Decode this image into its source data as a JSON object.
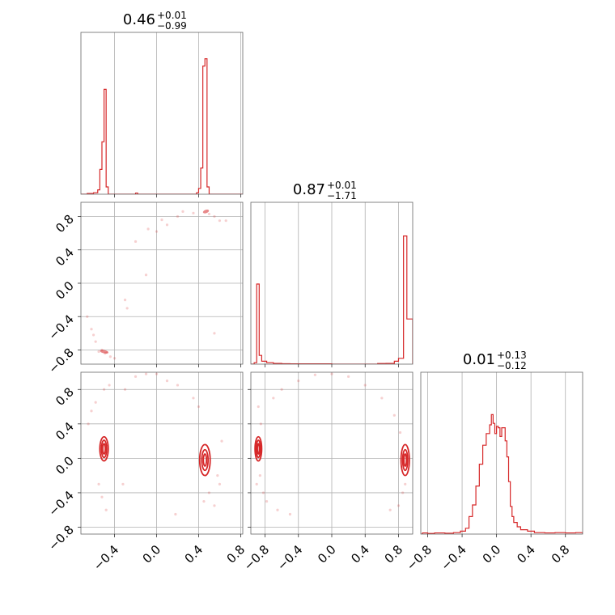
{
  "chart_data": {
    "type": "corner",
    "colors": {
      "series": "#d62728",
      "grid": "#b0b0b0",
      "frame": "#666666"
    },
    "grid": true,
    "params": [
      {
        "id": "p0",
        "range": [
          -0.72,
          0.82
        ],
        "ticks": [
          -0.4,
          0.0,
          0.4,
          0.8
        ],
        "tick_labels": [
          "−0.4",
          "0.0",
          "0.4",
          "0.8"
        ],
        "title": {
          "value": "0.46",
          "plus": "+0.01",
          "minus": "−0.99"
        }
      },
      {
        "id": "p1",
        "range": [
          -0.97,
          0.97
        ],
        "ticks": [
          -0.8,
          -0.4,
          0.0,
          0.4,
          0.8
        ],
        "tick_labels": [
          "−0.8",
          "−0.4",
          "0.0",
          "0.4",
          "0.8"
        ],
        "title": {
          "value": "0.87",
          "plus": "+0.01",
          "minus": "−1.71"
        }
      },
      {
        "id": "p2",
        "range": [
          -0.88,
          1.0
        ],
        "ticks": [
          -0.8,
          -0.4,
          0.0,
          0.4,
          0.8
        ],
        "tick_labels": [
          "−0.8",
          "−0.4",
          "0.0",
          "0.4",
          "0.8"
        ],
        "title": {
          "value": "0.01",
          "plus": "+0.13",
          "minus": "−0.12"
        }
      }
    ],
    "histograms": [
      {
        "param": "p0",
        "ymax": 1.0,
        "bins": [
          [
            -0.72,
            0.0
          ],
          [
            -0.66,
            0.005
          ],
          [
            -0.6,
            0.01
          ],
          [
            -0.56,
            0.03
          ],
          [
            -0.54,
            0.17
          ],
          [
            -0.52,
            0.36
          ],
          [
            -0.5,
            0.72
          ],
          [
            -0.48,
            0.05
          ],
          [
            -0.46,
            0.0
          ],
          [
            -0.22,
            0.0
          ],
          [
            -0.2,
            0.008
          ],
          [
            -0.18,
            0.0
          ],
          [
            0.36,
            0.0
          ],
          [
            0.38,
            0.01
          ],
          [
            0.4,
            0.04
          ],
          [
            0.42,
            0.18
          ],
          [
            0.44,
            0.88
          ],
          [
            0.46,
            0.93
          ],
          [
            0.48,
            0.05
          ],
          [
            0.5,
            0.0
          ],
          [
            0.82,
            0.0
          ]
        ]
      },
      {
        "param": "p1",
        "ymax": 1.0,
        "bins": [
          [
            -0.97,
            0.0
          ],
          [
            -0.93,
            0.01
          ],
          [
            -0.9,
            0.55
          ],
          [
            -0.87,
            0.06
          ],
          [
            -0.84,
            0.02
          ],
          [
            -0.78,
            0.01
          ],
          [
            -0.7,
            0.005
          ],
          [
            -0.6,
            0.003
          ],
          [
            -0.5,
            0.002
          ],
          [
            0.0,
            0.0
          ],
          [
            0.55,
            0.004
          ],
          [
            0.65,
            0.005
          ],
          [
            0.75,
            0.02
          ],
          [
            0.8,
            0.04
          ],
          [
            0.86,
            0.88
          ],
          [
            0.9,
            0.31
          ],
          [
            0.97,
            0.0
          ]
        ]
      },
      {
        "param": "p2",
        "ymax": 1.0,
        "bins": [
          [
            -0.88,
            0.0
          ],
          [
            -0.86,
            0.008
          ],
          [
            -0.8,
            0.004
          ],
          [
            -0.72,
            0.008
          ],
          [
            -0.6,
            0.006
          ],
          [
            -0.5,
            0.01
          ],
          [
            -0.42,
            0.02
          ],
          [
            -0.36,
            0.04
          ],
          [
            -0.32,
            0.12
          ],
          [
            -0.28,
            0.2
          ],
          [
            -0.24,
            0.33
          ],
          [
            -0.2,
            0.48
          ],
          [
            -0.16,
            0.61
          ],
          [
            -0.12,
            0.69
          ],
          [
            -0.08,
            0.75
          ],
          [
            -0.06,
            0.82
          ],
          [
            -0.04,
            0.76
          ],
          [
            -0.02,
            0.69
          ],
          [
            0.0,
            0.74
          ],
          [
            0.02,
            0.73
          ],
          [
            0.04,
            0.67
          ],
          [
            0.06,
            0.73
          ],
          [
            0.08,
            0.73
          ],
          [
            0.1,
            0.64
          ],
          [
            0.12,
            0.53
          ],
          [
            0.14,
            0.36
          ],
          [
            0.16,
            0.19
          ],
          [
            0.18,
            0.12
          ],
          [
            0.2,
            0.08
          ],
          [
            0.24,
            0.05
          ],
          [
            0.28,
            0.03
          ],
          [
            0.32,
            0.03
          ],
          [
            0.36,
            0.02
          ],
          [
            0.44,
            0.01
          ],
          [
            0.56,
            0.008
          ],
          [
            0.68,
            0.01
          ],
          [
            0.8,
            0.008
          ],
          [
            0.92,
            0.01
          ],
          [
            1.0,
            0.0
          ]
        ]
      }
    ],
    "pairs": [
      {
        "x": "p0",
        "y": "p1",
        "scatter": [
          [
            -0.55,
            -0.82
          ],
          [
            -0.52,
            -0.8
          ],
          [
            -0.49,
            -0.84
          ],
          [
            -0.47,
            -0.83
          ],
          [
            -0.58,
            -0.7
          ],
          [
            -0.62,
            -0.55
          ],
          [
            -0.66,
            -0.4
          ],
          [
            -0.6,
            -0.62
          ],
          [
            -0.44,
            -0.88
          ],
          [
            -0.4,
            -0.9
          ],
          [
            -0.3,
            -0.2
          ],
          [
            -0.28,
            -0.3
          ],
          [
            -0.2,
            0.5
          ],
          [
            -0.1,
            0.1
          ],
          [
            0.0,
            0.62
          ],
          [
            0.05,
            0.76
          ],
          [
            0.1,
            0.7
          ],
          [
            0.2,
            0.8
          ],
          [
            0.35,
            0.84
          ],
          [
            0.5,
            0.83
          ],
          [
            0.55,
            0.8
          ],
          [
            0.6,
            0.75
          ],
          [
            0.66,
            0.75
          ],
          [
            0.55,
            -0.6
          ],
          [
            -0.08,
            0.65
          ],
          [
            0.25,
            0.86
          ]
        ],
        "cores": [
          {
            "center": [
              -0.5,
              -0.82
            ],
            "sx": 0.04,
            "sy": 0.02,
            "angle": 12
          },
          {
            "center": [
              0.47,
              0.86
            ],
            "sx": 0.03,
            "sy": 0.02,
            "angle": -20
          }
        ]
      },
      {
        "x": "p0",
        "y": "p2",
        "scatter": [
          [
            -0.62,
            0.55
          ],
          [
            -0.58,
            0.65
          ],
          [
            -0.65,
            0.4
          ],
          [
            -0.55,
            -0.3
          ],
          [
            -0.52,
            -0.45
          ],
          [
            -0.48,
            -0.6
          ],
          [
            -0.5,
            0.8
          ],
          [
            -0.45,
            0.85
          ],
          [
            -0.2,
            0.95
          ],
          [
            -0.1,
            0.98
          ],
          [
            0.0,
            0.98
          ],
          [
            0.1,
            0.9
          ],
          [
            0.2,
            0.85
          ],
          [
            0.35,
            0.7
          ],
          [
            0.4,
            0.6
          ],
          [
            0.5,
            -0.4
          ],
          [
            0.55,
            -0.55
          ],
          [
            0.6,
            -0.3
          ],
          [
            0.45,
            -0.5
          ],
          [
            0.62,
            0.2
          ],
          [
            -0.3,
            0.8
          ],
          [
            0.58,
            -0.2
          ],
          [
            0.18,
            -0.65
          ],
          [
            -0.32,
            -0.3
          ]
        ],
        "contours": [
          {
            "center": [
              -0.5,
              0.11
            ],
            "rx": [
              0.012,
              0.025,
              0.04
            ],
            "ry": [
              0.06,
              0.1,
              0.14
            ]
          },
          {
            "center": [
              0.46,
              -0.02
            ],
            "rx": [
              0.015,
              0.03,
              0.05
            ],
            "ry": [
              0.07,
              0.12,
              0.18
            ]
          }
        ]
      },
      {
        "x": "p1",
        "y": "p2",
        "scatter": [
          [
            -0.88,
            0.6
          ],
          [
            -0.85,
            0.4
          ],
          [
            -0.9,
            -0.3
          ],
          [
            -0.82,
            -0.4
          ],
          [
            -0.78,
            -0.5
          ],
          [
            -0.7,
            0.7
          ],
          [
            -0.6,
            0.8
          ],
          [
            -0.4,
            0.9
          ],
          [
            -0.2,
            0.97
          ],
          [
            0.0,
            0.98
          ],
          [
            0.2,
            0.95
          ],
          [
            0.4,
            0.85
          ],
          [
            0.6,
            0.7
          ],
          [
            0.75,
            0.5
          ],
          [
            0.82,
            0.3
          ],
          [
            0.85,
            -0.4
          ],
          [
            0.8,
            -0.55
          ],
          [
            -0.5,
            -0.65
          ],
          [
            -0.65,
            -0.6
          ],
          [
            0.7,
            -0.6
          ],
          [
            -0.86,
            -0.2
          ],
          [
            0.88,
            -0.3
          ]
        ],
        "contours": [
          {
            "center": [
              -0.88,
              0.11
            ],
            "rx": [
              0.012,
              0.025,
              0.04
            ],
            "ry": [
              0.06,
              0.1,
              0.14
            ]
          },
          {
            "center": [
              0.88,
              -0.02
            ],
            "rx": [
              0.015,
              0.03,
              0.05
            ],
            "ry": [
              0.07,
              0.12,
              0.18
            ]
          }
        ]
      }
    ]
  }
}
